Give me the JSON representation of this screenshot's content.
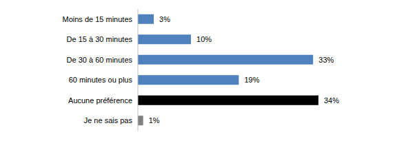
{
  "chart_data": {
    "type": "bar",
    "orientation": "horizontal",
    "categories": [
      "Moins de 15 minutes",
      "De 15 à 30 minutes",
      "De 30 à 60 minutes",
      "60 minutes ou plus",
      "Aucune préférence",
      "Je ne sais pas"
    ],
    "values": [
      3,
      10,
      33,
      19,
      34,
      1
    ],
    "value_labels": [
      "3%",
      "10%",
      "33%",
      "19%",
      "34%",
      "1%"
    ],
    "colors": [
      "#4f81bd",
      "#4f81bd",
      "#4f81bd",
      "#4f81bd",
      "#000000",
      "#808080"
    ],
    "xlim": [
      0,
      34
    ],
    "data_labels": true,
    "tick_labels": "y",
    "grid": false
  }
}
